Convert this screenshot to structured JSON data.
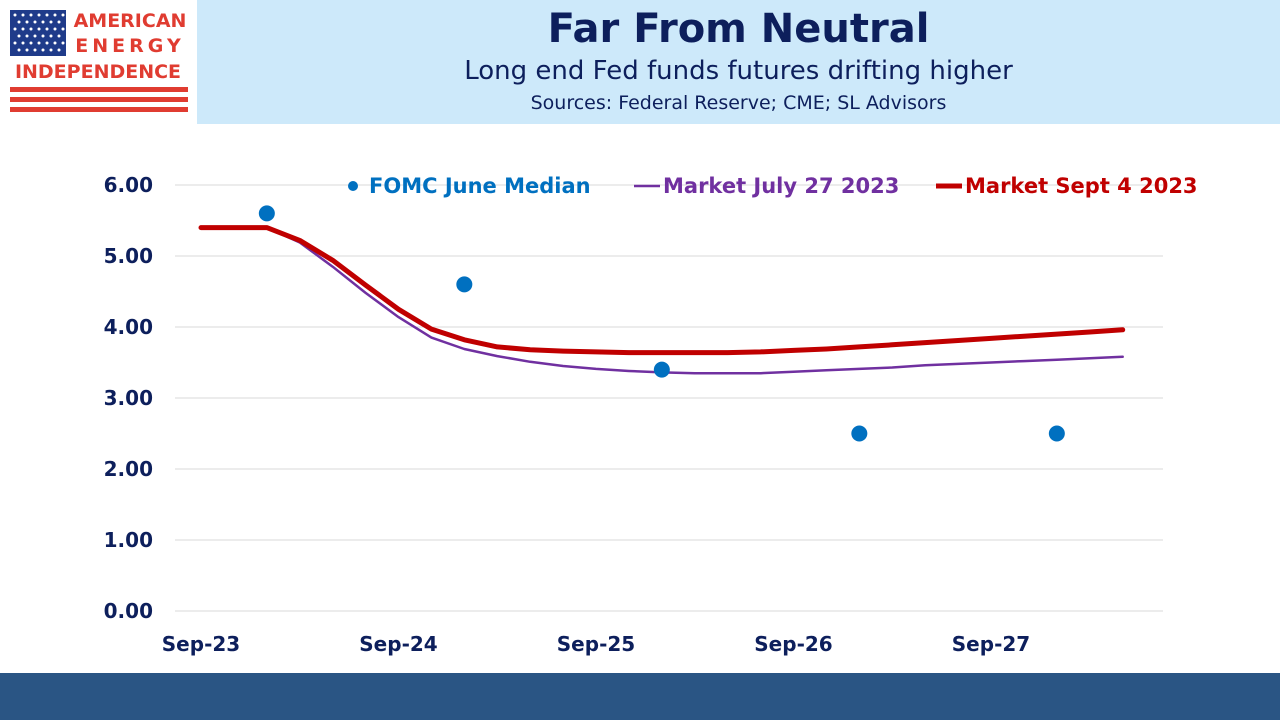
{
  "header": {
    "title": "Far From Neutral",
    "subtitle": "Long end Fed funds futures drifting higher",
    "sources": "Sources: Federal Reserve; CME; SL Advisors"
  },
  "logo": {
    "line1": "AMERICAN",
    "line2": "ENERGY",
    "line3": "INDEPENDENCE",
    "icon": "us-flag-icon"
  },
  "colors": {
    "header_bg": "#cde9fa",
    "title": "#0d1f5c",
    "fomc": "#0070c0",
    "july": "#7030a0",
    "sept": "#c00000",
    "footer": "#2a5584"
  },
  "chart_data": {
    "type": "line",
    "ylim": [
      0,
      6
    ],
    "y_ticks": [
      "0.00",
      "1.00",
      "2.00",
      "3.00",
      "4.00",
      "5.00",
      "6.00"
    ],
    "x_ticks": [
      "Sep-23",
      "Sep-24",
      "Sep-25",
      "Sep-26",
      "Sep-27"
    ],
    "x_range_months": [
      0,
      56
    ],
    "grid": true,
    "legend_position": "top",
    "series": [
      {
        "name": "FOMC June  Median",
        "style": "scatter",
        "x": [
          4,
          16,
          28,
          40,
          52
        ],
        "values": [
          5.6,
          4.6,
          3.4,
          2.5,
          2.5
        ]
      },
      {
        "name": "Market July 27 2023",
        "style": "line-thin",
        "x": [
          0,
          2,
          4,
          6,
          8,
          10,
          12,
          14,
          16,
          18,
          20,
          22,
          24,
          26,
          28,
          30,
          32,
          34,
          36,
          38,
          40,
          42,
          44,
          46,
          48,
          50,
          52,
          54,
          56
        ],
        "values": [
          5.4,
          5.4,
          5.4,
          5.19,
          4.85,
          4.48,
          4.14,
          3.85,
          3.69,
          3.59,
          3.51,
          3.45,
          3.41,
          3.38,
          3.36,
          3.35,
          3.35,
          3.35,
          3.37,
          3.39,
          3.41,
          3.43,
          3.46,
          3.48,
          3.5,
          3.52,
          3.54,
          3.56,
          3.58
        ]
      },
      {
        "name": "Market Sept 4 2023",
        "style": "line-thick",
        "x": [
          0,
          2,
          4,
          6,
          8,
          10,
          12,
          14,
          16,
          18,
          20,
          22,
          24,
          26,
          28,
          30,
          32,
          34,
          36,
          38,
          40,
          42,
          44,
          46,
          48,
          50,
          52,
          54,
          56
        ],
        "values": [
          5.4,
          5.4,
          5.4,
          5.22,
          4.94,
          4.59,
          4.25,
          3.97,
          3.82,
          3.72,
          3.68,
          3.66,
          3.65,
          3.64,
          3.64,
          3.64,
          3.64,
          3.65,
          3.67,
          3.69,
          3.72,
          3.75,
          3.78,
          3.81,
          3.84,
          3.87,
          3.9,
          3.93,
          3.96
        ]
      }
    ]
  }
}
